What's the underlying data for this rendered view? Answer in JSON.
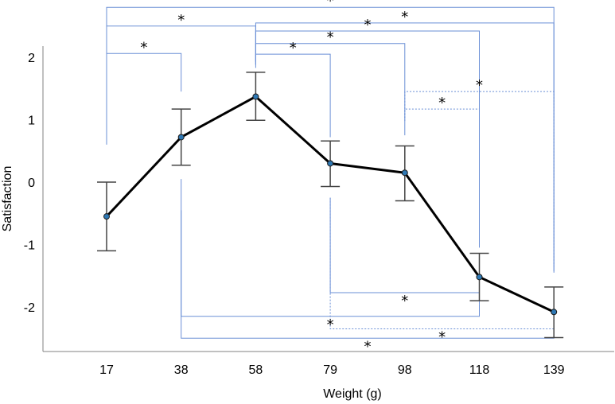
{
  "chart_data": {
    "type": "line",
    "categories": [
      "17",
      "38",
      "58",
      "79",
      "98",
      "118",
      "139"
    ],
    "xlabel": "Weight (g)",
    "ylabel": "Satisfaction",
    "ylim": [
      -2.6,
      2.25
    ],
    "yticks": [
      2,
      1,
      0,
      -1,
      -2
    ],
    "ytick_labels": [
      "2",
      "1",
      "0",
      "-1",
      "-2"
    ],
    "grid": false,
    "series": [
      {
        "values": [
          -0.55,
          0.72,
          1.37,
          0.3,
          0.15,
          -1.52,
          -2.08
        ],
        "err_low": [
          -1.1,
          0.27,
          0.99,
          -0.07,
          -0.3,
          -1.9,
          -2.49
        ],
        "err_high": [
          0.0,
          1.17,
          1.76,
          0.66,
          0.58,
          -1.14,
          -1.68
        ]
      }
    ],
    "significance_marker": "*",
    "brackets": [
      {
        "from": "17",
        "to": "139",
        "side": "top",
        "style": "solid",
        "level_y": 2.8,
        "end_from": 0.6,
        "end_to": -1.45,
        "label": "*"
      },
      {
        "from": "17",
        "to": "58",
        "side": "top",
        "style": "solid",
        "level_y": 2.5,
        "end_from": 1.65,
        "end_to": 1.88,
        "label": "*"
      },
      {
        "from": "17",
        "to": "38",
        "side": "top",
        "style": "solid",
        "level_y": 2.06,
        "end_from": 1.65,
        "end_to": 1.45,
        "label": "*"
      },
      {
        "from": "58",
        "to": "139",
        "side": "top",
        "style": "solid",
        "level_y": 2.55,
        "end_from": 1.83,
        "end_to": -1.43,
        "label": "*"
      },
      {
        "from": "58",
        "to": "118",
        "side": "top",
        "style": "solid",
        "level_y": 2.42,
        "end_from": 1.88,
        "end_to": -1.05,
        "label": "*"
      },
      {
        "from": "58",
        "to": "98",
        "side": "top",
        "style": "solid",
        "level_y": 2.22,
        "end_from": 1.93,
        "end_to": 0.75,
        "label": "*"
      },
      {
        "from": "58",
        "to": "79",
        "side": "top",
        "style": "solid",
        "level_y": 2.05,
        "end_from": 1.93,
        "end_to": 0.72,
        "label": "*"
      },
      {
        "from": "98",
        "to": "139",
        "side": "top",
        "style": "dashed",
        "level_y": 1.45,
        "end_from": 1.02,
        "end_to": -1.35,
        "label": "*"
      },
      {
        "from": "98",
        "to": "118",
        "side": "top",
        "style": "dashed",
        "level_y": 1.17,
        "end_from": 0.98,
        "end_to": -1.02,
        "label": "*"
      },
      {
        "from": "79",
        "to": "118",
        "side": "bottom",
        "style": "solid",
        "level_y": -1.77,
        "end_from": -0.25,
        "end_to": -1.96,
        "label": "*"
      },
      {
        "from": "79",
        "to": "139",
        "side": "bottom",
        "style": "dashed",
        "level_y": -2.35,
        "end_from": -0.25,
        "end_to": -2.2,
        "label": "*"
      },
      {
        "from": "38",
        "to": "118",
        "side": "bottom",
        "style": "solid",
        "level_y": -2.15,
        "end_from": -0.45,
        "end_to": -1.96,
        "label": "*"
      },
      {
        "from": "38",
        "to": "139",
        "side": "bottom",
        "style": "solid",
        "level_y": -2.5,
        "end_from": 0.05,
        "end_to": -2.48,
        "label": "*"
      }
    ],
    "colors": {
      "line": "#000000",
      "marker_fill": "#2e78b4",
      "marker_edge": "#1a1a1a",
      "errorbar": "#444444",
      "bracket": "#6a8fd6",
      "axis": "#808080"
    }
  }
}
